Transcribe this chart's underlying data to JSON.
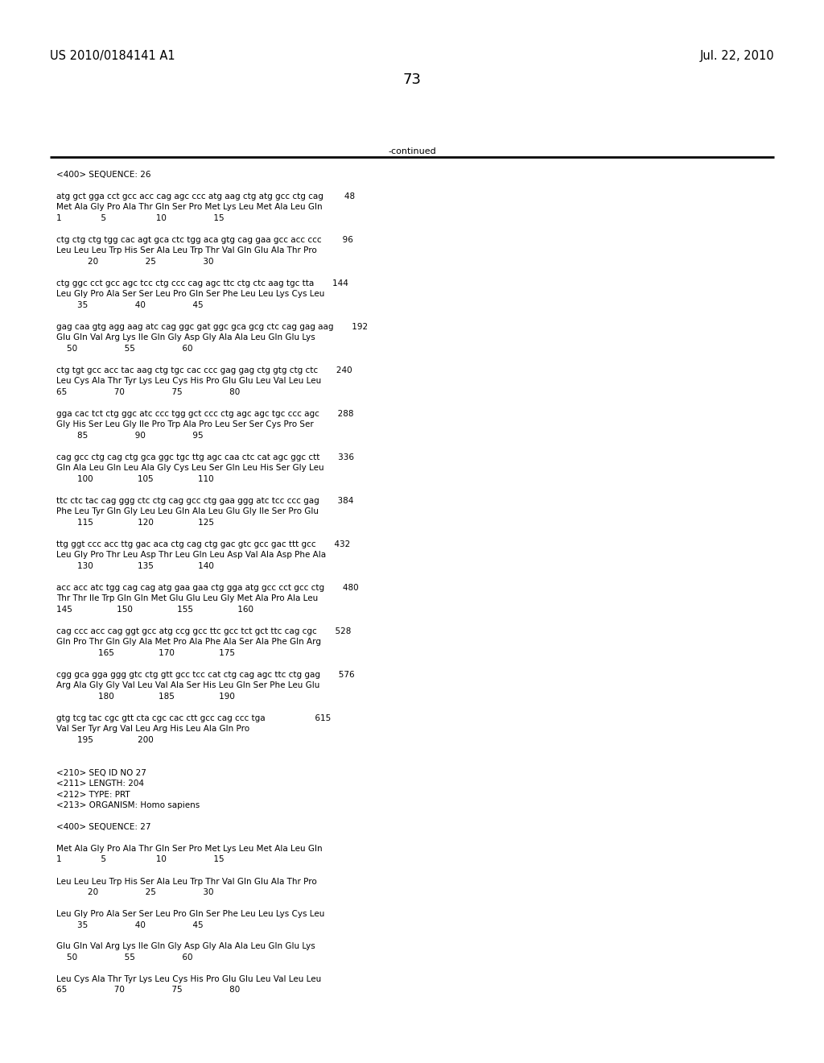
{
  "header_left": "US 2010/0184141 A1",
  "header_right": "Jul. 22, 2010",
  "page_number": "73",
  "continued_text": "-continued",
  "background_color": "#ffffff",
  "text_color": "#000000",
  "header_font_size": 10.5,
  "page_font_size": 13,
  "body_font_size": 8.0,
  "mono_font_size": 7.5,
  "content_lines": [
    "<400> SEQUENCE: 26",
    "",
    "atg gct gga cct gcc acc cag agc ccc atg aag ctg atg gcc ctg cag        48",
    "Met Ala Gly Pro Ala Thr Gln Ser Pro Met Lys Leu Met Ala Leu Gln",
    "1               5                   10                  15",
    "",
    "ctg ctg ctg tgg cac agt gca ctc tgg aca gtg cag gaa gcc acc ccc        96",
    "Leu Leu Leu Trp His Ser Ala Leu Trp Thr Val Gln Glu Ala Thr Pro",
    "            20                  25                  30",
    "",
    "ctg ggc cct gcc agc tcc ctg ccc cag agc ttc ctg ctc aag tgc tta       144",
    "Leu Gly Pro Ala Ser Ser Leu Pro Gln Ser Phe Leu Leu Lys Cys Leu",
    "        35                  40                  45",
    "",
    "gag caa gtg agg aag atc cag ggc gat ggc gca gcg ctc cag gag aag       192",
    "Glu Gln Val Arg Lys Ile Gln Gly Asp Gly Ala Ala Leu Gln Glu Lys",
    "    50                  55                  60",
    "",
    "ctg tgt gcc acc tac aag ctg tgc cac ccc gag gag ctg gtg ctg ctc       240",
    "Leu Cys Ala Thr Tyr Lys Leu Cys His Pro Glu Glu Leu Val Leu Leu",
    "65                  70                  75                  80",
    "",
    "gga cac tct ctg ggc atc ccc tgg gct ccc ctg agc agc tgc ccc agc       288",
    "Gly His Ser Leu Gly Ile Pro Trp Ala Pro Leu Ser Ser Cys Pro Ser",
    "        85                  90                  95",
    "",
    "cag gcc ctg cag ctg gca ggc tgc ttg agc caa ctc cat agc ggc ctt       336",
    "Gln Ala Leu Gln Leu Ala Gly Cys Leu Ser Gln Leu His Ser Gly Leu",
    "        100                 105                 110",
    "",
    "ttc ctc tac cag ggg ctc ctg cag gcc ctg gaa ggg atc tcc ccc gag       384",
    "Phe Leu Tyr Gln Gly Leu Leu Gln Ala Leu Glu Gly Ile Ser Pro Glu",
    "        115                 120                 125",
    "",
    "ttg ggt ccc acc ttg gac aca ctg cag ctg gac gtc gcc gac ttt gcc       432",
    "Leu Gly Pro Thr Leu Asp Thr Leu Gln Leu Asp Val Ala Asp Phe Ala",
    "        130                 135                 140",
    "",
    "acc acc atc tgg cag cag atg gaa gaa ctg gga atg gcc cct gcc ctg       480",
    "Thr Thr Ile Trp Gln Gln Met Glu Glu Leu Gly Met Ala Pro Ala Leu",
    "145                 150                 155                 160",
    "",
    "cag ccc acc cag ggt gcc atg ccg gcc ttc gcc tct gct ttc cag cgc       528",
    "Gln Pro Thr Gln Gly Ala Met Pro Ala Phe Ala Ser Ala Phe Gln Arg",
    "                165                 170                 175",
    "",
    "cgg gca gga ggg gtc ctg gtt gcc tcc cat ctg cag agc ttc ctg gag       576",
    "Arg Ala Gly Gly Val Leu Val Ala Ser His Leu Gln Ser Phe Leu Glu",
    "                180                 185                 190",
    "",
    "gtg tcg tac cgc gtt cta cgc cac ctt gcc cag ccc tga                   615",
    "Val Ser Tyr Arg Val Leu Arg His Leu Ala Gln Pro",
    "        195                 200",
    "",
    "",
    "<210> SEQ ID NO 27",
    "<211> LENGTH: 204",
    "<212> TYPE: PRT",
    "<213> ORGANISM: Homo sapiens",
    "",
    "<400> SEQUENCE: 27",
    "",
    "Met Ala Gly Pro Ala Thr Gln Ser Pro Met Lys Leu Met Ala Leu Gln",
    "1               5                   10                  15",
    "",
    "Leu Leu Leu Trp His Ser Ala Leu Trp Thr Val Gln Glu Ala Thr Pro",
    "            20                  25                  30",
    "",
    "Leu Gly Pro Ala Ser Ser Leu Pro Gln Ser Phe Leu Leu Lys Cys Leu",
    "        35                  40                  45",
    "",
    "Glu Gln Val Arg Lys Ile Gln Gly Asp Gly Ala Ala Leu Gln Glu Lys",
    "    50                  55                  60",
    "",
    "Leu Cys Ala Thr Tyr Lys Leu Cys His Pro Glu Glu Leu Val Leu Leu",
    "65                  70                  75                  80"
  ]
}
